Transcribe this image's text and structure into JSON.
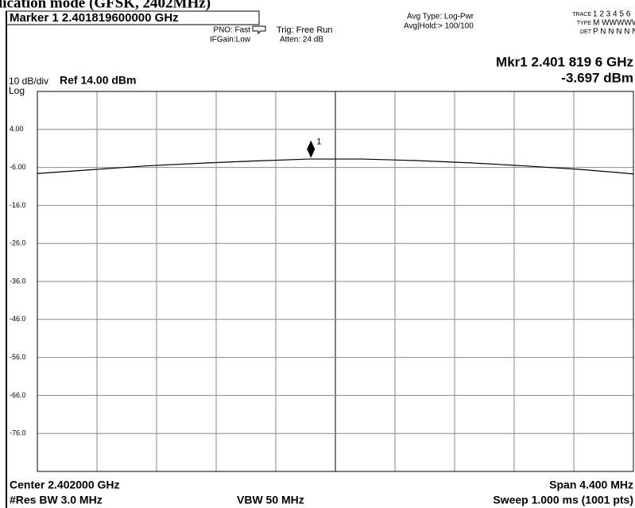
{
  "caption": "lication mode (GFSK, 2402MHz)",
  "header": {
    "marker_readout": "Marker 1 2.401819600000 GHz",
    "pno": "PNO: Fast",
    "ifgain": "IFGain:Low",
    "trig": "Trig: Free Run",
    "atten": "Atten: 24 dB",
    "avg_type": "Avg Type: Log-Pwr",
    "avg_hold": "Avg|Hold:> 100/100",
    "trace_label": "TRACE",
    "trace": "1 2 3 4 5 6",
    "type_label": "TYPE",
    "type": "M WWWWW",
    "det_label": "DET",
    "det": "P N N N N N"
  },
  "readout": {
    "frequency": "Mkr1 2.401 819 6 GHz",
    "level": "-3.697 dBm"
  },
  "scale": {
    "per_div": "10 dB/div",
    "ref": "Ref 14.00 dBm",
    "log": "Log"
  },
  "footer": {
    "center": "Center 2.402000 GHz",
    "span": "Span 4.400 MHz",
    "rbw": "#Res BW 3.0 MHz",
    "vbw": "VBW 50 MHz",
    "sweep": "Sweep  1.000 ms (1001 pts)"
  },
  "chart_data": {
    "type": "line",
    "x": [
      2.3998,
      2.4002,
      2.4006,
      2.401,
      2.4014,
      2.4018,
      2.4022,
      2.4026,
      2.403,
      2.4034,
      2.4038,
      2.4042
    ],
    "series": [
      {
        "color": "#000000",
        "values": [
          -7.6,
          -6.6,
          -5.6,
          -4.9,
          -4.3,
          -3.8,
          -3.8,
          -4.2,
          -4.8,
          -5.6,
          -6.5,
          -7.7
        ]
      }
    ],
    "marker": {
      "label": "1",
      "x": 2.4018196,
      "y": -3.697
    },
    "xlim": [
      2.3998,
      2.4042
    ],
    "ylim": [
      -86,
      14
    ],
    "yticks": [
      {
        "value": 4,
        "label": "4.00"
      },
      {
        "value": -6,
        "label": "-6.00"
      },
      {
        "value": -16,
        "label": "-16.0"
      },
      {
        "value": -26,
        "label": "-26.0"
      },
      {
        "value": -36,
        "label": "-36.0"
      },
      {
        "value": -46,
        "label": "-46.0"
      },
      {
        "value": -56,
        "label": "-56.0"
      },
      {
        "value": -66,
        "label": "-66.0"
      },
      {
        "value": -76,
        "label": "-76.0"
      }
    ],
    "grid": true
  }
}
